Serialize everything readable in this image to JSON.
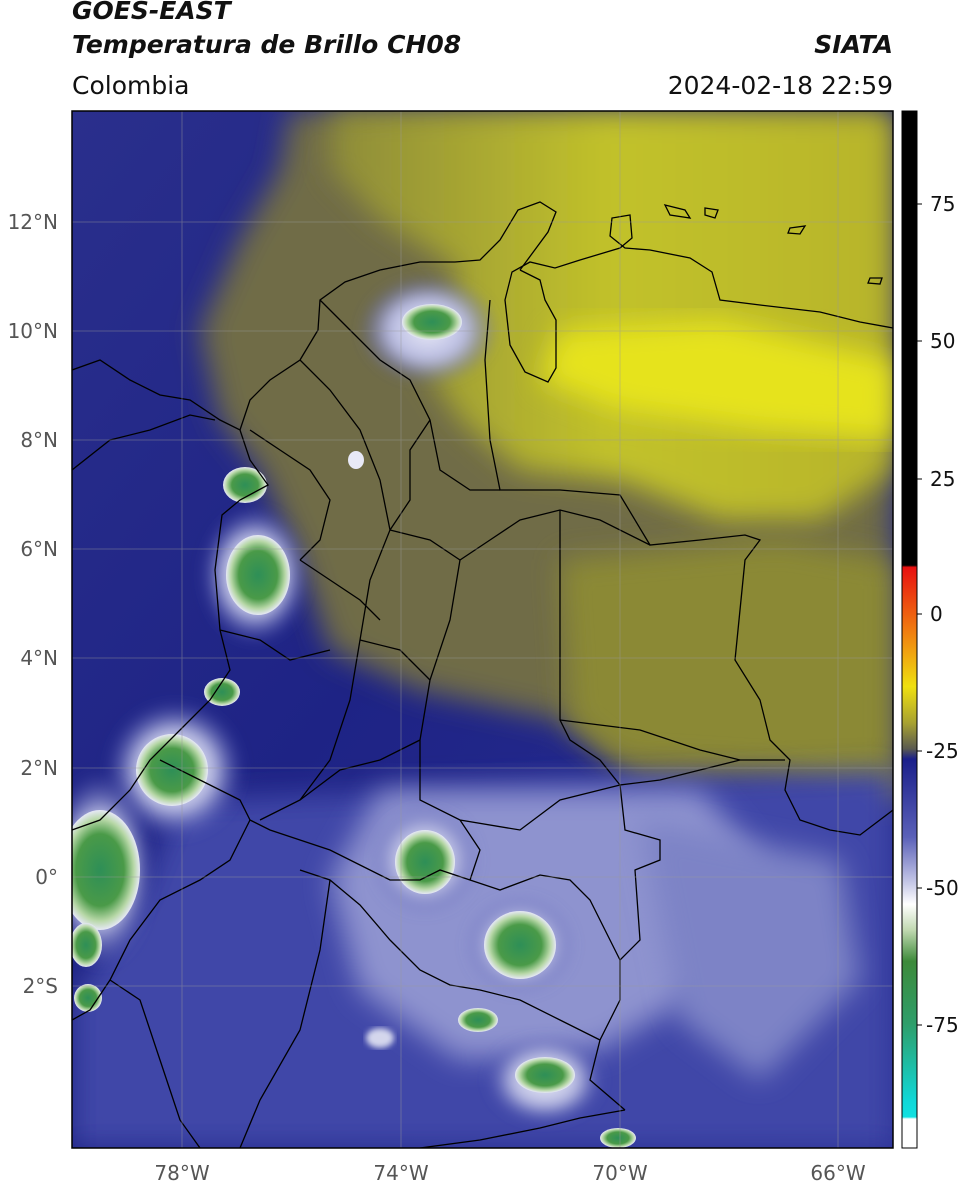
{
  "header": {
    "title_line1": "GOES-EAST",
    "title_line2": "Temperatura de Brillo CH08",
    "region": "Colombia",
    "organization": "SIATA",
    "datetime": "2024-02-18 22:59"
  },
  "map": {
    "extent": {
      "lon_min": -80.0,
      "lon_max": -65.0,
      "lat_min": -5.0,
      "lat_max": 14.0
    },
    "lat_ticks": [
      {
        "value": 12,
        "label": "12°N"
      },
      {
        "value": 10,
        "label": "10°N"
      },
      {
        "value": 8,
        "label": "8°N"
      },
      {
        "value": 6,
        "label": "6°N"
      },
      {
        "value": 4,
        "label": "4°N"
      },
      {
        "value": 2,
        "label": "2°N"
      },
      {
        "value": 0,
        "label": "0°"
      },
      {
        "value": -2,
        "label": "2°S"
      }
    ],
    "lon_ticks": [
      {
        "value": -78,
        "label": "78°W"
      },
      {
        "value": -74,
        "label": "74°W"
      },
      {
        "value": -70,
        "label": "70°W"
      },
      {
        "value": -66,
        "label": "66°W"
      }
    ],
    "gridlines": true
  },
  "colorbar": {
    "range": [
      -95,
      90
    ],
    "ticks": [
      {
        "value": 75,
        "label": "75"
      },
      {
        "value": 50,
        "label": "50"
      },
      {
        "value": 25,
        "label": "25"
      },
      {
        "value": 0,
        "label": "0"
      },
      {
        "value": -25,
        "label": "-25"
      },
      {
        "value": -50,
        "label": "-50"
      },
      {
        "value": -75,
        "label": "-75"
      }
    ]
  },
  "colors": {
    "warm_yellow": "#c8c820",
    "olive": "#8a8a2e",
    "dark_blue": "#1a1f8a",
    "mid_blue": "#4d55b5",
    "light_lavender": "#c9cbe8",
    "green_core": "#3e9a4c",
    "border": "#000000"
  }
}
